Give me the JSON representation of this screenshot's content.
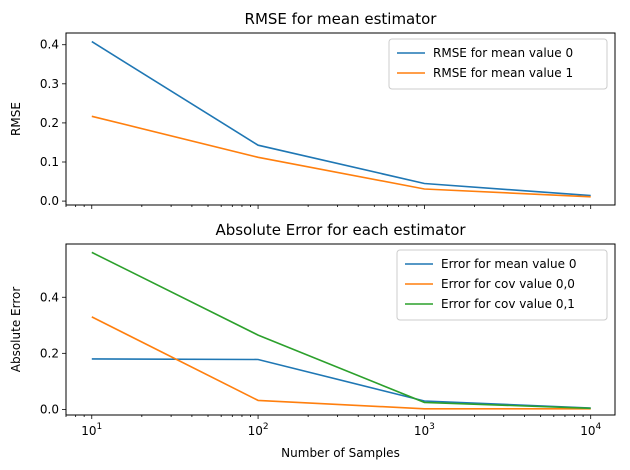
{
  "chart_data": [
    {
      "type": "line",
      "title": "RMSE for mean estimator",
      "xlabel": "",
      "ylabel": "RMSE",
      "xscale": "log",
      "xlim": [
        7,
        14000
      ],
      "ylim": [
        -0.01,
        0.43
      ],
      "yticks": [
        0.0,
        0.1,
        0.2,
        0.3,
        0.4
      ],
      "ytick_labels": [
        "0.0",
        "0.1",
        "0.2",
        "0.3",
        "0.4"
      ],
      "xtick_labels_visible": false,
      "x": [
        10,
        100,
        1000,
        10000
      ],
      "series": [
        {
          "name": "RMSE for mean value 0",
          "color": "#1f77b4",
          "values": [
            0.408,
            0.143,
            0.045,
            0.014
          ]
        },
        {
          "name": "RMSE for mean value 1",
          "color": "#ff7f0e",
          "values": [
            0.217,
            0.112,
            0.031,
            0.011
          ]
        }
      ],
      "legend": "top-right",
      "grid": false
    },
    {
      "type": "line",
      "title": "Absolute Error for each estimator",
      "xlabel": "Number of Samples",
      "ylabel": "Absolute Error",
      "xscale": "log",
      "xlim": [
        7,
        14000
      ],
      "ylim": [
        -0.02,
        0.59
      ],
      "yticks": [
        0.0,
        0.2,
        0.4
      ],
      "ytick_labels": [
        "0.0",
        "0.2",
        "0.4"
      ],
      "xtick_labels_visible": true,
      "xticks": [
        10,
        100,
        1000,
        10000
      ],
      "xtick_base": [
        "10",
        "10",
        "10",
        "10"
      ],
      "xtick_exp": [
        "1",
        "2",
        "3",
        "4"
      ],
      "x": [
        10,
        100,
        1000,
        10000
      ],
      "series": [
        {
          "name": "Error for mean value 0",
          "color": "#1f77b4",
          "values": [
            0.18,
            0.178,
            0.03,
            0.005
          ]
        },
        {
          "name": "Error for cov value 0,0",
          "color": "#ff7f0e",
          "values": [
            0.33,
            0.032,
            0.002,
            0.002
          ]
        },
        {
          "name": "Error for cov value 0,1",
          "color": "#2ca02c",
          "values": [
            0.56,
            0.265,
            0.025,
            0.004
          ]
        }
      ],
      "legend": "top-right",
      "grid": false
    }
  ]
}
